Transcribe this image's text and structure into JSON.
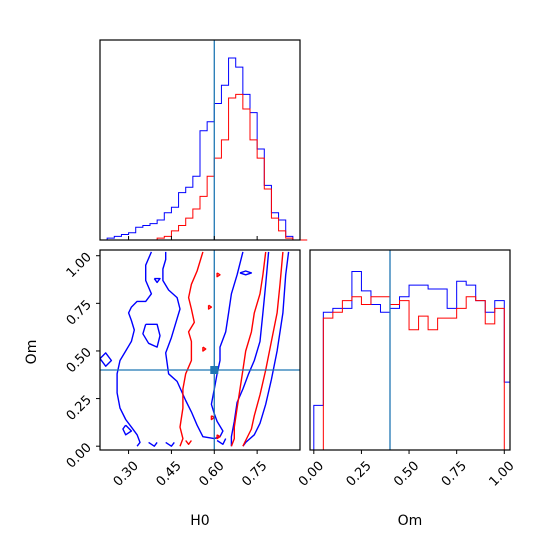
{
  "chart_data": {
    "type": "corner",
    "parameters": [
      "H0",
      "Om"
    ],
    "truth": {
      "H0": 0.6,
      "Om": 0.4
    },
    "colors": {
      "blue": "#0000ff",
      "red": "#ff0000",
      "truth": "#1f77b4"
    },
    "axes": {
      "H0_range": [
        0.2,
        0.9
      ],
      "Om_range": [
        -0.02,
        1.03
      ],
      "H0_ticks": [
        "0.30",
        "0.45",
        "0.60",
        "0.75"
      ],
      "Om_ticks_2d": [
        "0.00",
        "0.25",
        "0.50",
        "0.75",
        "1.00"
      ],
      "Om_ticks_1d": [
        "0.00",
        "0.25",
        "0.50",
        "0.75",
        "1.00"
      ],
      "H0_tick_values": [
        0.3,
        0.45,
        0.6,
        0.75
      ],
      "Om_tick_values": [
        0.0,
        0.25,
        0.5,
        0.75,
        1.0
      ]
    },
    "xlabel_H0": "H0",
    "xlabel_Om": "Om",
    "ylabel_Om": "Om",
    "h0_hist": {
      "bin_width": 0.025,
      "blue": [
        [
          0.2,
          0
        ],
        [
          0.225,
          0.01
        ],
        [
          0.25,
          0.02
        ],
        [
          0.275,
          0.03
        ],
        [
          0.3,
          0.04
        ],
        [
          0.325,
          0.07
        ],
        [
          0.35,
          0.08
        ],
        [
          0.375,
          0.09
        ],
        [
          0.4,
          0.11
        ],
        [
          0.425,
          0.15
        ],
        [
          0.45,
          0.18
        ],
        [
          0.475,
          0.26
        ],
        [
          0.5,
          0.29
        ],
        [
          0.525,
          0.35
        ],
        [
          0.55,
          0.6
        ],
        [
          0.575,
          0.65
        ],
        [
          0.6,
          0.75
        ],
        [
          0.625,
          0.85
        ],
        [
          0.65,
          1.0
        ],
        [
          0.675,
          0.95
        ],
        [
          0.7,
          0.8
        ],
        [
          0.725,
          0.7
        ],
        [
          0.75,
          0.5
        ],
        [
          0.775,
          0.3
        ],
        [
          0.8,
          0.15
        ],
        [
          0.825,
          0.11
        ],
        [
          0.85,
          0.02
        ],
        [
          0.875,
          0
        ],
        [
          0.9,
          0
        ]
      ],
      "red": [
        [
          0.2,
          0
        ],
        [
          0.225,
          0
        ],
        [
          0.25,
          0
        ],
        [
          0.275,
          0
        ],
        [
          0.3,
          0
        ],
        [
          0.325,
          0
        ],
        [
          0.35,
          0
        ],
        [
          0.375,
          0
        ],
        [
          0.4,
          0.01
        ],
        [
          0.425,
          0.02
        ],
        [
          0.45,
          0.05
        ],
        [
          0.475,
          0.08
        ],
        [
          0.5,
          0.12
        ],
        [
          0.525,
          0.17
        ],
        [
          0.55,
          0.24
        ],
        [
          0.575,
          0.35
        ],
        [
          0.6,
          0.45
        ],
        [
          0.625,
          0.55
        ],
        [
          0.65,
          0.78
        ],
        [
          0.675,
          0.8
        ],
        [
          0.7,
          0.72
        ],
        [
          0.725,
          0.55
        ],
        [
          0.75,
          0.45
        ],
        [
          0.775,
          0.28
        ],
        [
          0.8,
          0.12
        ],
        [
          0.825,
          0.05
        ],
        [
          0.85,
          0.01
        ],
        [
          0.875,
          0
        ],
        [
          0.9,
          0
        ]
      ]
    },
    "om_hist": {
      "bin_width": 0.05,
      "blue": [
        [
          -0.05,
          0
        ],
        [
          0.0,
          0.23
        ],
        [
          0.05,
          0.71
        ],
        [
          0.1,
          0.73
        ],
        [
          0.15,
          0.73
        ],
        [
          0.2,
          0.92
        ],
        [
          0.25,
          0.82
        ],
        [
          0.3,
          0.75
        ],
        [
          0.35,
          0.71
        ],
        [
          0.4,
          0.73
        ],
        [
          0.45,
          0.79
        ],
        [
          0.5,
          0.85
        ],
        [
          0.55,
          0.85
        ],
        [
          0.6,
          0.83
        ],
        [
          0.65,
          0.83
        ],
        [
          0.7,
          0.73
        ],
        [
          0.75,
          0.87
        ],
        [
          0.8,
          0.85
        ],
        [
          0.85,
          0.77
        ],
        [
          0.9,
          0.71
        ],
        [
          0.95,
          0.77
        ],
        [
          1.0,
          0.35
        ]
      ],
      "red": [
        [
          -0.05,
          0
        ],
        [
          0.0,
          0
        ],
        [
          0.05,
          0.68
        ],
        [
          0.1,
          0.71
        ],
        [
          0.15,
          0.77
        ],
        [
          0.2,
          0.79
        ],
        [
          0.25,
          0.75
        ],
        [
          0.3,
          0.79
        ],
        [
          0.35,
          0.79
        ],
        [
          0.4,
          0.75
        ],
        [
          0.45,
          0.77
        ],
        [
          0.5,
          0.62
        ],
        [
          0.55,
          0.69
        ],
        [
          0.6,
          0.62
        ],
        [
          0.65,
          0.68
        ],
        [
          0.7,
          0.68
        ],
        [
          0.75,
          0.73
        ],
        [
          0.8,
          0.79
        ],
        [
          0.85,
          0.77
        ],
        [
          0.9,
          0.65
        ],
        [
          0.95,
          0.73
        ],
        [
          1.0,
          0
        ]
      ]
    },
    "contours": {
      "blue": [
        [
          [
            0.86,
            1.02
          ],
          [
            0.85,
            0.9
          ],
          [
            0.84,
            0.7
          ],
          [
            0.82,
            0.5
          ],
          [
            0.8,
            0.35
          ],
          [
            0.78,
            0.22
          ],
          [
            0.76,
            0.12
          ],
          [
            0.74,
            0.06
          ],
          [
            0.71,
            0.02
          ],
          [
            0.7,
            0.0
          ]
        ],
        [
          [
            0.79,
            1.02
          ],
          [
            0.78,
            0.85
          ],
          [
            0.77,
            0.7
          ],
          [
            0.76,
            0.55
          ],
          [
            0.74,
            0.45
          ],
          [
            0.72,
            0.38
          ],
          [
            0.7,
            0.3
          ],
          [
            0.68,
            0.23
          ],
          [
            0.67,
            0.13
          ],
          [
            0.66,
            0.05
          ],
          [
            0.66,
            0.0
          ]
        ],
        [
          [
            0.7,
            1.02
          ],
          [
            0.68,
            0.9
          ],
          [
            0.66,
            0.8
          ],
          [
            0.65,
            0.7
          ],
          [
            0.64,
            0.6
          ],
          [
            0.62,
            0.52
          ],
          [
            0.62,
            0.45
          ],
          [
            0.61,
            0.38
          ],
          [
            0.6,
            0.3
          ],
          [
            0.59,
            0.22
          ],
          [
            0.6,
            0.17
          ],
          [
            0.61,
            0.13
          ],
          [
            0.63,
            0.08
          ],
          [
            0.62,
            0.05
          ],
          [
            0.6,
            0.04
          ],
          [
            0.56,
            0.05
          ],
          [
            0.54,
            0.11
          ],
          [
            0.52,
            0.18
          ],
          [
            0.5,
            0.24
          ],
          [
            0.47,
            0.34
          ],
          [
            0.44,
            0.38
          ],
          [
            0.43,
            0.49
          ],
          [
            0.45,
            0.57
          ],
          [
            0.47,
            0.67
          ],
          [
            0.48,
            0.72
          ],
          [
            0.47,
            0.78
          ],
          [
            0.44,
            0.82
          ],
          [
            0.42,
            0.87
          ],
          [
            0.42,
            0.93
          ],
          [
            0.43,
            0.98
          ],
          [
            0.43,
            1.02
          ]
        ],
        [
          [
            0.38,
            1.02
          ],
          [
            0.36,
            0.95
          ],
          [
            0.36,
            0.87
          ],
          [
            0.38,
            0.8
          ],
          [
            0.36,
            0.76
          ],
          [
            0.33,
            0.76
          ],
          [
            0.31,
            0.73
          ],
          [
            0.3,
            0.7
          ],
          [
            0.31,
            0.66
          ],
          [
            0.32,
            0.61
          ],
          [
            0.31,
            0.55
          ],
          [
            0.29,
            0.5
          ],
          [
            0.27,
            0.45
          ],
          [
            0.26,
            0.38
          ],
          [
            0.26,
            0.28
          ],
          [
            0.27,
            0.2
          ],
          [
            0.29,
            0.14
          ],
          [
            0.31,
            0.1
          ],
          [
            0.33,
            0.06
          ],
          [
            0.34,
            0.02
          ],
          [
            0.33,
            0.0
          ]
        ],
        [
          [
            0.29,
            0.11
          ],
          [
            0.31,
            0.08
          ],
          [
            0.29,
            0.06
          ],
          [
            0.28,
            0.09
          ],
          [
            0.29,
            0.11
          ]
        ],
        [
          [
            0.36,
            0.64
          ],
          [
            0.4,
            0.64
          ],
          [
            0.41,
            0.58
          ],
          [
            0.4,
            0.52
          ],
          [
            0.37,
            0.54
          ],
          [
            0.35,
            0.59
          ],
          [
            0.36,
            0.64
          ]
        ],
        [
          [
            0.2,
            0.46
          ],
          [
            0.22,
            0.49
          ],
          [
            0.24,
            0.45
          ],
          [
            0.22,
            0.42
          ],
          [
            0.2,
            0.46
          ]
        ],
        [
          [
            0.37,
            0.02
          ],
          [
            0.39,
            0.0
          ],
          [
            0.4,
            0.02
          ]
        ],
        [
          [
            0.43,
            0.02
          ],
          [
            0.45,
            0.0
          ],
          [
            0.46,
            0.02
          ]
        ],
        [
          [
            0.39,
            0.88
          ],
          [
            0.41,
            0.88
          ],
          [
            0.4,
            0.86
          ],
          [
            0.39,
            0.88
          ]
        ],
        [
          [
            0.69,
            0.91
          ],
          [
            0.71,
            0.92
          ],
          [
            0.73,
            0.91
          ],
          [
            0.71,
            0.9
          ],
          [
            0.69,
            0.91
          ]
        ],
        [
          [
            0.61,
            0.03
          ],
          [
            0.63,
            0.01
          ],
          [
            0.64,
            0.04
          ]
        ]
      ],
      "red": [
        [
          [
            0.84,
            1.02
          ],
          [
            0.83,
            0.85
          ],
          [
            0.82,
            0.7
          ],
          [
            0.8,
            0.55
          ],
          [
            0.78,
            0.4
          ],
          [
            0.76,
            0.27
          ],
          [
            0.74,
            0.16
          ],
          [
            0.73,
            0.09
          ],
          [
            0.71,
            0.03
          ],
          [
            0.7,
            0.0
          ]
        ],
        [
          [
            0.78,
            1.02
          ],
          [
            0.77,
            0.9
          ],
          [
            0.76,
            0.8
          ],
          [
            0.74,
            0.7
          ],
          [
            0.73,
            0.6
          ],
          [
            0.71,
            0.5
          ],
          [
            0.7,
            0.4
          ],
          [
            0.69,
            0.3
          ],
          [
            0.68,
            0.2
          ],
          [
            0.67,
            0.1
          ],
          [
            0.67,
            0.04
          ],
          [
            0.66,
            0.0
          ]
        ],
        [
          [
            0.56,
            1.02
          ],
          [
            0.54,
            0.92
          ],
          [
            0.52,
            0.85
          ],
          [
            0.51,
            0.78
          ],
          [
            0.52,
            0.72
          ],
          [
            0.53,
            0.65
          ],
          [
            0.51,
            0.6
          ],
          [
            0.52,
            0.55
          ],
          [
            0.52,
            0.45
          ],
          [
            0.5,
            0.38
          ],
          [
            0.49,
            0.3
          ],
          [
            0.49,
            0.2
          ],
          [
            0.48,
            0.1
          ],
          [
            0.49,
            0.04
          ],
          [
            0.48,
            0.0
          ]
        ],
        [
          [
            0.5,
            0.03
          ],
          [
            0.51,
            0.01
          ],
          [
            0.52,
            0.03
          ]
        ],
        [
          [
            0.56,
            0.52
          ],
          [
            0.57,
            0.51
          ],
          [
            0.56,
            0.5
          ],
          [
            0.56,
            0.52
          ]
        ],
        [
          [
            0.58,
            0.74
          ],
          [
            0.59,
            0.73
          ],
          [
            0.58,
            0.72
          ],
          [
            0.58,
            0.74
          ]
        ],
        [
          [
            0.61,
            0.91
          ],
          [
            0.62,
            0.9
          ],
          [
            0.61,
            0.89
          ],
          [
            0.61,
            0.91
          ]
        ],
        [
          [
            0.61,
            0.06
          ],
          [
            0.62,
            0.05
          ],
          [
            0.61,
            0.04
          ],
          [
            0.61,
            0.06
          ]
        ],
        [
          [
            0.59,
            0.16
          ],
          [
            0.6,
            0.15
          ],
          [
            0.59,
            0.14
          ],
          [
            0.59,
            0.16
          ]
        ]
      ]
    }
  }
}
